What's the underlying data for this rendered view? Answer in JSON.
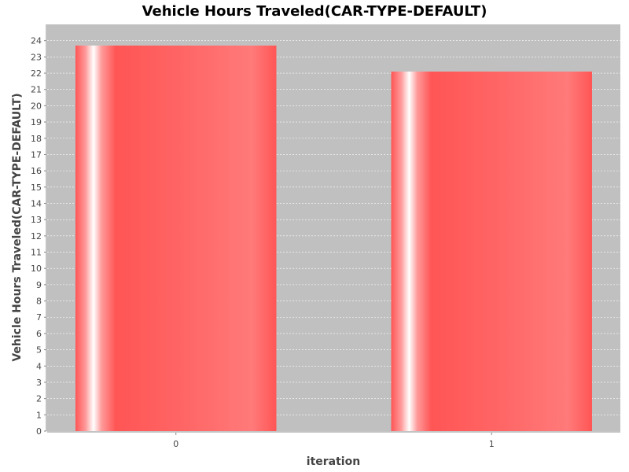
{
  "chart_data": {
    "type": "bar",
    "title": "Vehicle Hours Traveled(CAR-TYPE-DEFAULT)",
    "xlabel": "iteration",
    "ylabel": "Vehicle Hours Traveled(CAR-TYPE-DEFAULT)",
    "categories": [
      "0",
      "1"
    ],
    "values": [
      23.7,
      22.1
    ],
    "ylim": [
      0,
      25
    ],
    "y_ticks": [
      "0",
      "1",
      "2",
      "3",
      "4",
      "5",
      "6",
      "7",
      "8",
      "9",
      "10",
      "11",
      "12",
      "13",
      "14",
      "15",
      "16",
      "17",
      "18",
      "19",
      "20",
      "21",
      "22",
      "23",
      "24"
    ],
    "grid": true,
    "legend": "none"
  },
  "colors": {
    "plot_background": "#c0c0c0",
    "bar_base": "#ff5555",
    "bar_highlight": "#ffffff",
    "bar_light": "#ff7a7a",
    "gridline": "#ffffff",
    "axis": "#888888"
  }
}
